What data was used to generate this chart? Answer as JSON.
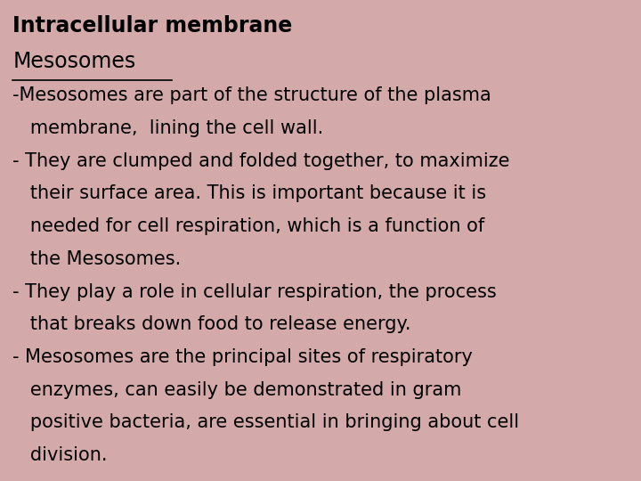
{
  "background_color": "#d4a9a9",
  "title": "Intracellular membrane",
  "title_fontsize": 17,
  "subtitle": "Mesosomes",
  "subtitle_fontsize": 17,
  "body_lines": [
    "-Mesosomes are part of the structure of the plasma",
    "   membrane,  lining the cell wall.",
    "- They are clumped and folded together, to maximize",
    "   their surface area. This is important because it is",
    "   needed for cell respiration, which is a function of",
    "   the Mesosomes.",
    "- They play a role in cellular respiration, the process",
    "   that breaks down food to release energy.",
    "- Mesosomes are the principal sites of respiratory",
    "   enzymes, can easily be demonstrated in gram",
    "   positive bacteria, are essential in bringing about cell",
    "   division."
  ],
  "body_fontsize": 15,
  "text_color": "#000000",
  "font_family": "DejaVu Sans"
}
